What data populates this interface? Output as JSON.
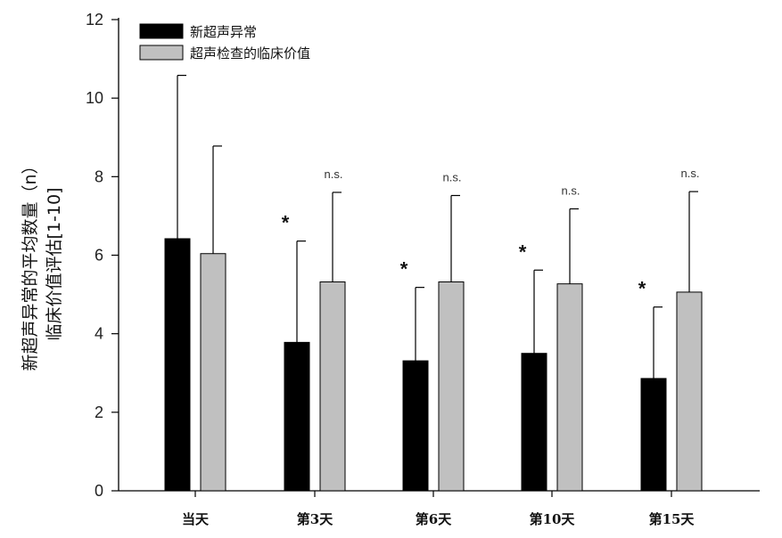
{
  "chart_data": {
    "type": "bar",
    "categories": [
      "当天",
      "第3天",
      "第6天",
      "第10天",
      "第15天"
    ],
    "series": [
      {
        "name": "新超声异常",
        "color": "#000000",
        "values": [
          6.42,
          3.78,
          3.31,
          3.5,
          2.86
        ],
        "error_upper": [
          10.58,
          6.36,
          5.18,
          5.62,
          4.68
        ],
        "annotations": [
          "",
          "*",
          "*",
          "*",
          "*"
        ]
      },
      {
        "name": "超声检查的临床价值",
        "color": "#c0c0c0",
        "values": [
          6.04,
          5.32,
          5.32,
          5.27,
          5.06
        ],
        "error_upper": [
          8.78,
          7.6,
          7.52,
          7.18,
          7.62
        ],
        "annotations": [
          "",
          "n.s.",
          "n.s.",
          "n.s.",
          "n.s."
        ]
      }
    ],
    "ylabel": [
      "新超声异常的平均数量（n）",
      "临床价值评估[1-10]"
    ],
    "ylim": [
      0,
      12
    ],
    "yticks": [
      0,
      2,
      4,
      6,
      8,
      10,
      12
    ],
    "legend": "top-left",
    "grid": false
  }
}
